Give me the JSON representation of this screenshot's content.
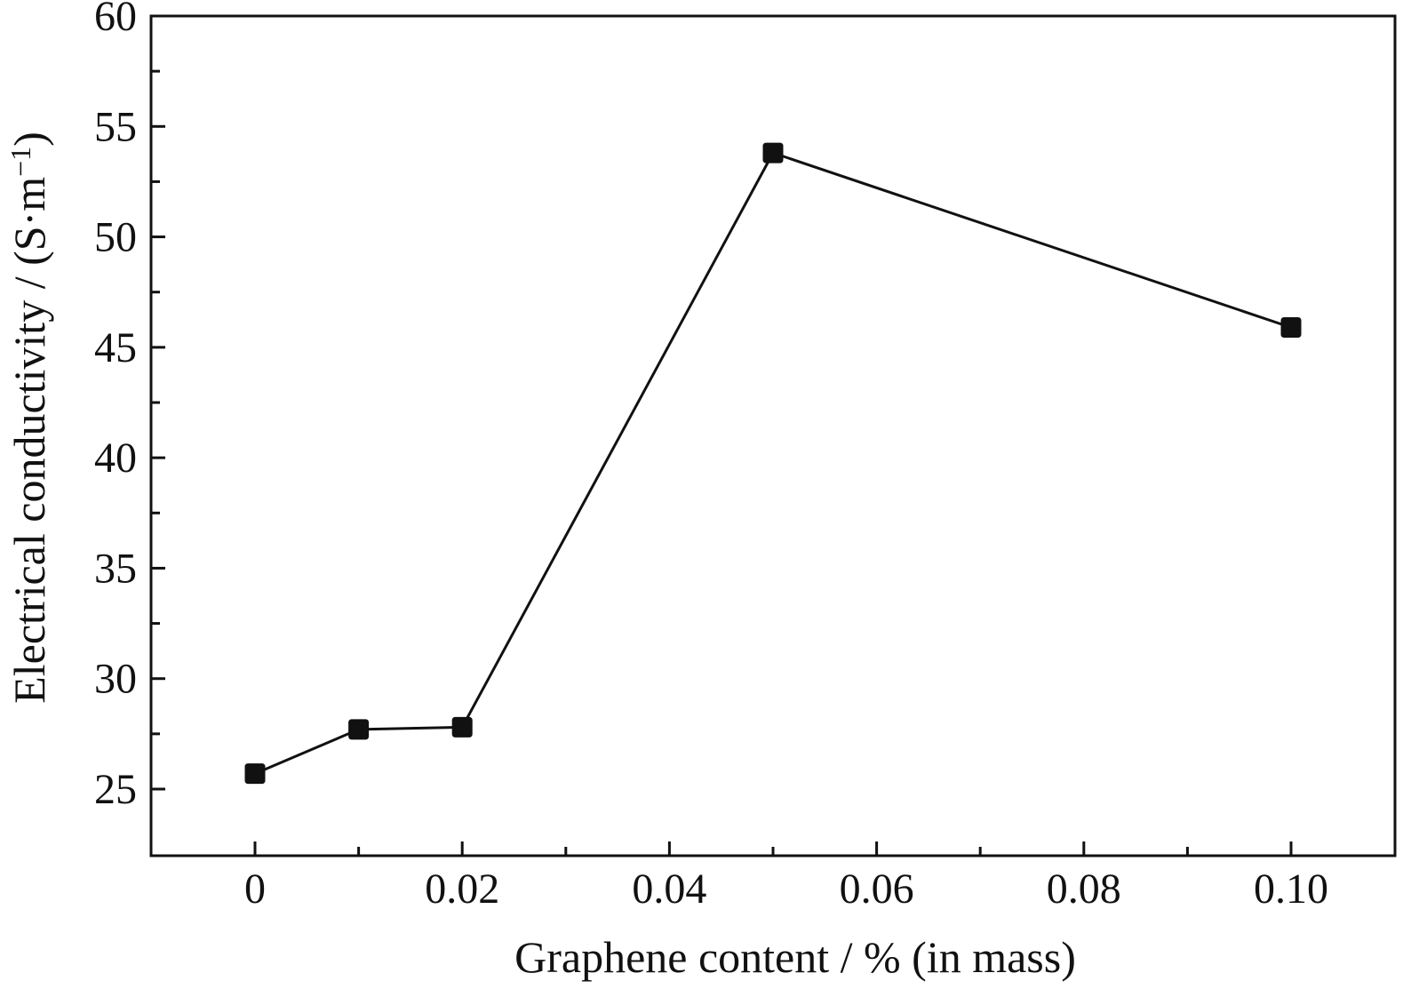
{
  "chart_data": {
    "type": "line",
    "title": "",
    "xlabel": "Graphene content / % (in mass)",
    "ylabel": "Electrical conductivity / (S·m⁻¹)",
    "ylabel_parts": {
      "text": "Electrical conductivity / (S·m",
      "sup": "−1",
      "close": ")"
    },
    "x_tick_labels": [
      "0",
      "0.02",
      "0.04",
      "0.06",
      "0.08",
      "0.10"
    ],
    "y_tick_labels": [
      "25",
      "30",
      "35",
      "40",
      "45",
      "50",
      "55",
      "60"
    ],
    "ylim": [
      22.5,
      60
    ],
    "grid": false,
    "legend": "none",
    "series": [
      {
        "marker": "square",
        "color": "#111111",
        "points": [
          {
            "x": 0,
            "y": 25.7
          },
          {
            "x": 0.01,
            "y": 27.7
          },
          {
            "x": 0.02,
            "y": 27.8
          },
          {
            "x": 0.05,
            "y": 53.8
          },
          {
            "x": 0.1,
            "y": 45.9
          }
        ]
      }
    ]
  }
}
